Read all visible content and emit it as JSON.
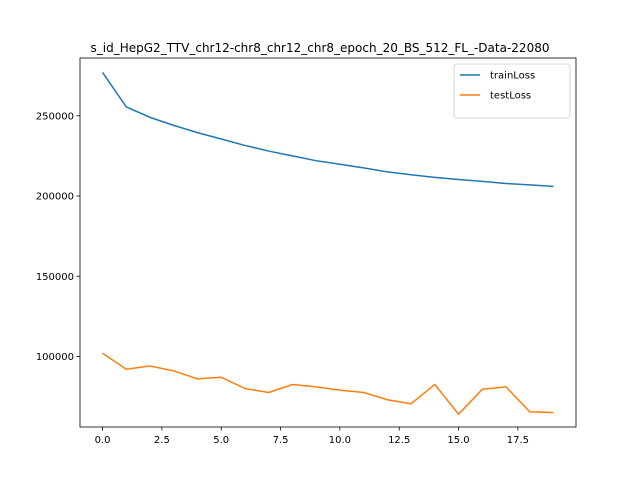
{
  "chart_data": {
    "type": "line",
    "title": "s_id_HepG2_TTV_chr12-chr8_chr12_chr8_epoch_20_BS_512_FL_-Data-22080",
    "xlabel": "",
    "ylabel": "",
    "x": [
      0,
      1,
      2,
      3,
      4,
      5,
      6,
      7,
      8,
      9,
      10,
      11,
      12,
      13,
      14,
      15,
      16,
      17,
      18,
      19
    ],
    "xlim": [
      -0.95,
      19.95
    ],
    "ylim": [
      56000,
      286000
    ],
    "x_ticks": [
      0,
      2.5,
      5,
      7.5,
      10,
      12.5,
      15,
      17.5
    ],
    "x_tick_labels": [
      "0.0",
      "2.5",
      "5.0",
      "7.5",
      "10.0",
      "12.5",
      "15.0",
      "17.5"
    ],
    "y_ticks": [
      100000,
      150000,
      200000,
      250000
    ],
    "y_tick_labels": [
      "100000",
      "150000",
      "200000",
      "250000"
    ],
    "grid": false,
    "legend_position": "upper-right",
    "series": [
      {
        "name": "trainLoss",
        "color": "#1f77b4",
        "values": [
          277000,
          255500,
          249000,
          244000,
          239500,
          235500,
          231500,
          228000,
          225000,
          222000,
          219800,
          217500,
          215000,
          213200,
          211600,
          210300,
          209100,
          207800,
          206900,
          206000
        ]
      },
      {
        "name": "testLoss",
        "color": "#ff7f0e",
        "values": [
          102000,
          92000,
          94000,
          91000,
          86000,
          87000,
          80000,
          77500,
          82500,
          81000,
          79000,
          77500,
          73000,
          70500,
          82500,
          64000,
          79500,
          81000,
          65500,
          65000
        ]
      }
    ]
  }
}
